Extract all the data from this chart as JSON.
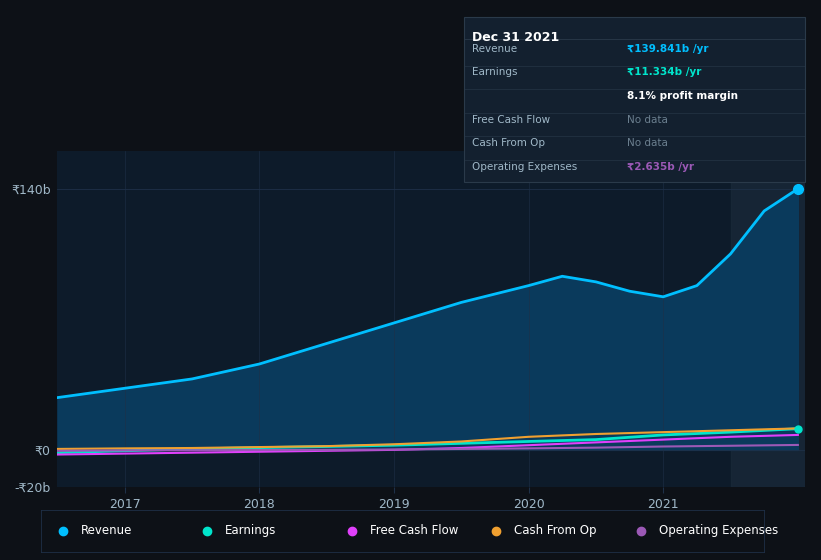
{
  "background_color": "#0d1117",
  "plot_bg_color": "#0d1b2a",
  "ylim": [
    -20,
    160
  ],
  "xlim": [
    2016.5,
    2022.05
  ],
  "yticks": [
    -20,
    0,
    140
  ],
  "xticks": [
    2017,
    2018,
    2019,
    2020,
    2021
  ],
  "series": {
    "Revenue": {
      "x": [
        2016.5,
        2017.0,
        2017.5,
        2018.0,
        2018.5,
        2019.0,
        2019.5,
        2020.0,
        2020.25,
        2020.5,
        2020.75,
        2021.0,
        2021.25,
        2021.5,
        2021.75,
        2022.0
      ],
      "y": [
        28,
        33,
        38,
        46,
        57,
        68,
        79,
        88,
        93,
        90,
        85,
        82,
        88,
        105,
        128,
        139.841
      ],
      "color": "#00bfff",
      "fill_color": "#0a3a5c",
      "lw": 2.0
    },
    "Earnings": {
      "x": [
        2016.5,
        2017.0,
        2017.5,
        2018.0,
        2018.5,
        2019.0,
        2019.5,
        2020.0,
        2020.5,
        2021.0,
        2021.5,
        2022.0
      ],
      "y": [
        -1.5,
        -0.5,
        0.5,
        1.2,
        1.8,
        2.5,
        3.5,
        4.5,
        5.5,
        8.0,
        9.5,
        11.334
      ],
      "color": "#00e5cc",
      "lw": 2.0
    },
    "Free Cash Flow": {
      "x": [
        2016.5,
        2017.0,
        2017.5,
        2018.0,
        2018.5,
        2019.0,
        2019.5,
        2020.0,
        2020.5,
        2021.0,
        2021.5,
        2022.0
      ],
      "y": [
        -2.5,
        -2.0,
        -1.5,
        -1.0,
        -0.5,
        0.0,
        1.0,
        2.5,
        4.0,
        5.5,
        7.0,
        8.0
      ],
      "color": "#e040fb",
      "lw": 1.5
    },
    "Cash From Op": {
      "x": [
        2016.5,
        2017.0,
        2017.5,
        2018.0,
        2018.5,
        2019.0,
        2019.5,
        2020.0,
        2020.5,
        2021.0,
        2021.5,
        2022.0
      ],
      "y": [
        0.5,
        0.8,
        1.0,
        1.5,
        2.0,
        3.0,
        4.5,
        7.0,
        8.5,
        9.5,
        10.5,
        11.5
      ],
      "color": "#f0a030",
      "lw": 1.5
    },
    "Operating Expenses": {
      "x": [
        2016.5,
        2017.0,
        2017.5,
        2018.0,
        2018.5,
        2019.0,
        2019.5,
        2020.0,
        2020.5,
        2021.0,
        2021.5,
        2022.0
      ],
      "y": [
        -0.5,
        -0.3,
        -0.2,
        -0.1,
        0.0,
        0.2,
        0.5,
        0.8,
        1.2,
        1.8,
        2.2,
        2.635
      ],
      "color": "#9b59b6",
      "lw": 1.5
    }
  },
  "tooltip": {
    "title": "Dec 31 2021",
    "bg": "#13202f",
    "border": "#2a3a4a",
    "rows": [
      {
        "label": "Revenue",
        "value": "₹139.841b /yr",
        "value_color": "#00bfff"
      },
      {
        "label": "Earnings",
        "value": "₹11.334b /yr",
        "value_color": "#00e5cc"
      },
      {
        "label": "",
        "value": "8.1% profit margin",
        "value_color": "#ffffff"
      },
      {
        "label": "Free Cash Flow",
        "value": "No data",
        "value_color": "#6b7f8f"
      },
      {
        "label": "Cash From Op",
        "value": "No data",
        "value_color": "#6b7f8f"
      },
      {
        "label": "Operating Expenses",
        "value": "₹2.635b /yr",
        "value_color": "#9b59b6"
      }
    ]
  },
  "legend_items": [
    {
      "label": "Revenue",
      "color": "#00bfff"
    },
    {
      "label": "Earnings",
      "color": "#00e5cc"
    },
    {
      "label": "Free Cash Flow",
      "color": "#e040fb"
    },
    {
      "label": "Cash From Op",
      "color": "#f0a030"
    },
    {
      "label": "Operating Expenses",
      "color": "#9b59b6"
    }
  ],
  "grid_color": "#1e3048",
  "text_color": "#a0b8c8",
  "highlight_bg": "#1a2a3a"
}
